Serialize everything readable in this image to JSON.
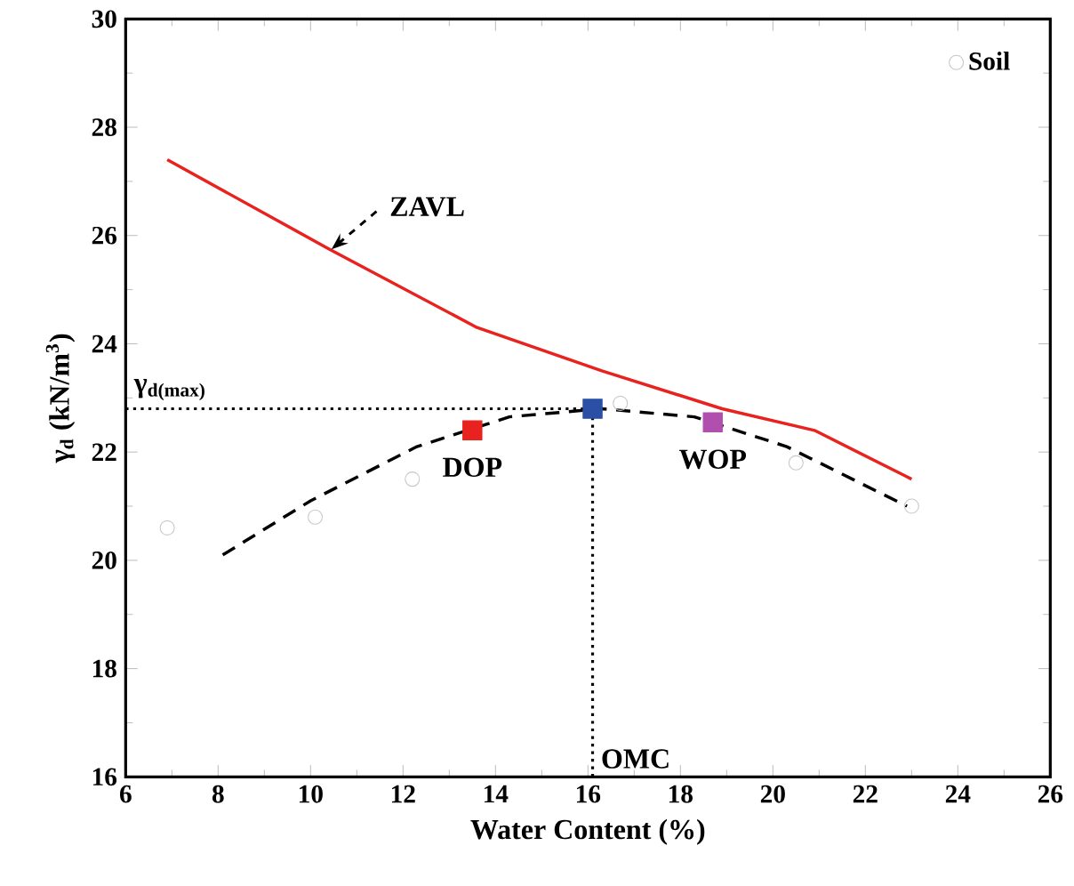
{
  "chart_data": {
    "type": "scatter",
    "xlabel": "Water Content (%)",
    "ylabel": "γ$_{d}$ (kN/m$^{3}$)",
    "xlim": [
      6,
      26
    ],
    "ylim": [
      16,
      30
    ],
    "xticks": [
      6,
      8,
      10,
      12,
      14,
      16,
      18,
      20,
      22,
      24,
      26
    ],
    "yticks": [
      16,
      18,
      20,
      22,
      24,
      26,
      28,
      30
    ],
    "legend": "top right",
    "grid": false,
    "series": [
      {
        "name": "Soil",
        "marker": "circle",
        "color": "#c8c8c8",
        "x": [
          6.9,
          10.1,
          12.2,
          16.7,
          20.5,
          23.0
        ],
        "values": [
          20.6,
          20.8,
          21.5,
          22.9,
          21.8,
          21.0
        ]
      },
      {
        "type": "line",
        "marker": "none",
        "line_style": "solid",
        "color": "#e8221e",
        "x": [
          6.9,
          10.4,
          13.6,
          16.3,
          18.9,
          20.9,
          23.0
        ],
        "values": [
          27.4,
          25.75,
          24.3,
          23.5,
          22.8,
          22.4,
          21.5
        ]
      },
      {
        "type": "line",
        "marker": "none",
        "line_style": "dashed",
        "color": "#000000",
        "x": [
          8.1,
          10.0,
          12.3,
          14.3,
          16.3,
          18.3,
          20.3,
          22.9
        ],
        "values": [
          20.1,
          21.1,
          22.1,
          22.65,
          22.8,
          22.65,
          22.1,
          21.0
        ]
      },
      {
        "type": "scatter",
        "marker": "square",
        "color": "#e8221e",
        "x": [
          13.5
        ],
        "values": [
          22.4
        ]
      },
      {
        "type": "scatter",
        "marker": "square",
        "color": "#2a4fa5",
        "x": [
          16.1
        ],
        "values": [
          22.8
        ]
      },
      {
        "type": "scatter",
        "marker": "square",
        "color": "#b04fae",
        "x": [
          18.7
        ],
        "values": [
          22.55
        ]
      }
    ],
    "ref_lines": [
      {
        "axis": "y",
        "value": 22.8,
        "label": "γ$_{d(max)}$",
        "line_style": "dotted",
        "color": "#000000"
      },
      {
        "axis": "x",
        "value": 16.1,
        "label": "OMC",
        "line_style": "dotted",
        "color": "#000000"
      }
    ],
    "annotations": [
      {
        "text": "ZAVL",
        "x": 10.4,
        "y": 25.7
      },
      {
        "text": "DOP",
        "x": 13.5,
        "y": 22.4
      },
      {
        "text": "WOP",
        "x": 18.7,
        "y": 22.55
      }
    ]
  }
}
